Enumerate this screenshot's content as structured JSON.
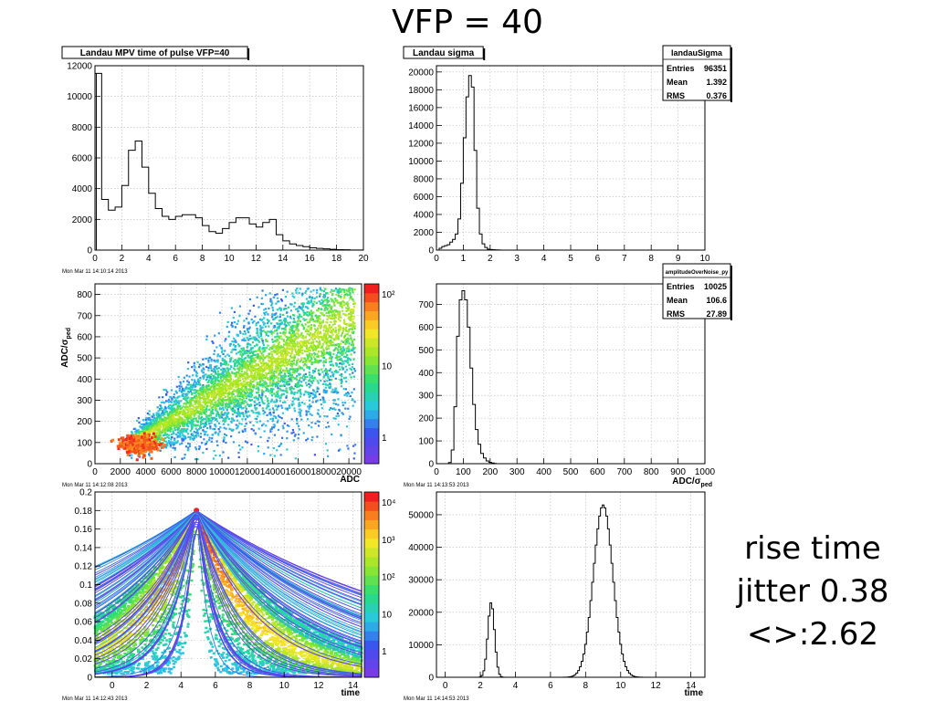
{
  "slide": {
    "title": "VFP = 40",
    "note_lines": [
      "rise time",
      "jitter 0.38",
      "<>:2.62"
    ]
  },
  "chart_data": [
    {
      "id": "mpv",
      "type": "histogram",
      "title": "Landau MPV time of pulse VFP=40",
      "timestamp": "Mon Mar 11 14:10:14 2013",
      "xlim": [
        0,
        20
      ],
      "ylim": [
        0,
        12000
      ],
      "xticks": [
        0,
        2,
        4,
        6,
        8,
        10,
        12,
        14,
        16,
        18,
        20
      ],
      "yticks": [
        0,
        2000,
        4000,
        6000,
        8000,
        10000,
        12000
      ],
      "x": [
        0.25,
        0.75,
        1.25,
        1.75,
        2.25,
        2.75,
        3.25,
        3.75,
        4.25,
        4.75,
        5.25,
        5.75,
        6.25,
        6.75,
        7.25,
        7.75,
        8.25,
        8.75,
        9.25,
        9.75,
        10.25,
        10.75,
        11.25,
        11.75,
        12.25,
        12.75,
        13.25,
        13.75,
        14.25,
        14.75,
        15.25,
        15.75,
        16.25,
        16.75,
        17.25,
        17.75,
        18.25,
        18.75,
        19.25,
        19.75
      ],
      "y": [
        11500,
        3300,
        2600,
        2800,
        4200,
        6500,
        7100,
        5400,
        3700,
        2700,
        2200,
        2000,
        2200,
        2300,
        2300,
        2100,
        1600,
        1200,
        1100,
        1400,
        1800,
        2100,
        2100,
        1700,
        1500,
        1800,
        2000,
        1000,
        600,
        400,
        300,
        220,
        150,
        110,
        80,
        50,
        30,
        20,
        10,
        5
      ],
      "extra_bins": [
        {
          "x": 0.1,
          "y": 5400
        }
      ]
    },
    {
      "id": "sigma",
      "type": "histogram",
      "title": "Landau sigma",
      "xlim": [
        0,
        10
      ],
      "ylim": [
        0,
        20700
      ],
      "xticks": [
        0,
        1,
        2,
        3,
        4,
        5,
        6,
        7,
        8,
        9,
        10
      ],
      "yticks": [
        0,
        2000,
        4000,
        6000,
        8000,
        10000,
        12000,
        14000,
        16000,
        18000,
        20000
      ],
      "x": [
        0.05,
        0.15,
        0.25,
        0.35,
        0.45,
        0.55,
        0.65,
        0.75,
        0.85,
        0.95,
        1.05,
        1.15,
        1.25,
        1.35,
        1.45,
        1.55,
        1.65,
        1.75,
        1.85,
        1.95,
        2.05,
        2.15,
        2.25,
        2.35,
        2.45,
        2.55
      ],
      "y": [
        0,
        200,
        400,
        500,
        600,
        900,
        1200,
        1800,
        3500,
        7500,
        12600,
        17200,
        19600,
        18300,
        11200,
        4700,
        1800,
        700,
        300,
        100,
        60,
        40,
        20,
        10,
        5,
        0
      ],
      "stats": {
        "name": "landauSigma",
        "rows": [
          [
            "Entries",
            "96351"
          ],
          [
            "Mean",
            "1.392"
          ],
          [
            "RMS",
            "0.376"
          ]
        ]
      }
    },
    {
      "id": "adc2d",
      "type": "heatmap",
      "timestamp": "Mon Mar 11 14:12:08 2013",
      "xlabel": "ADC",
      "ylabel": "ADC/σ_ped",
      "xlim": [
        0,
        21000
      ],
      "ylim": [
        0,
        850
      ],
      "xticks": [
        0,
        2000,
        4000,
        6000,
        8000,
        10000,
        12000,
        14000,
        16000,
        18000,
        20000
      ],
      "yticks": [
        0,
        100,
        200,
        300,
        400,
        500,
        600,
        700,
        800
      ],
      "zscale": "log",
      "zticks": [
        "1",
        "10",
        "10²"
      ],
      "band": {
        "start": [
          2500,
          80
        ],
        "hot_spot": [
          3500,
          90
        ],
        "slope_per_adc": 0.038,
        "spread_low": 0.35,
        "spread_high": 0.45,
        "end_x": 20500
      }
    },
    {
      "id": "adcnoise",
      "type": "histogram",
      "xlabel": "ADC/σ_ped",
      "timestamp": "Mon Mar 11 14:13:53 2013",
      "xlim": [
        0,
        1000
      ],
      "ylim": [
        0,
        790
      ],
      "xticks": [
        0,
        100,
        200,
        300,
        400,
        500,
        600,
        700,
        800,
        900,
        1000
      ],
      "yticks": [
        0,
        100,
        200,
        300,
        400,
        500,
        600,
        700
      ],
      "x": [
        50,
        60,
        70,
        80,
        90,
        100,
        110,
        120,
        130,
        140,
        150,
        160,
        170,
        180,
        190,
        200,
        210,
        220
      ],
      "y": [
        5,
        60,
        250,
        560,
        720,
        760,
        720,
        600,
        420,
        260,
        150,
        85,
        45,
        25,
        12,
        6,
        3,
        1
      ],
      "stats": {
        "name": "amplitudeOverNoise_py",
        "rows": [
          [
            "Entries",
            "10025"
          ],
          [
            "Mean",
            "106.6"
          ],
          [
            "RMS",
            "27.89"
          ]
        ]
      }
    },
    {
      "id": "time2d",
      "type": "heatmap",
      "xlabel": "time",
      "timestamp": "Mon Mar 11 14:12:43 2013",
      "xlim": [
        -1,
        14.5
      ],
      "ylim": [
        0,
        0.2
      ],
      "xticks": [
        0,
        2,
        4,
        6,
        8,
        10,
        12,
        14
      ],
      "yticks": [
        0,
        0.02,
        0.04,
        0.06,
        0.08,
        0.1,
        0.12,
        0.14,
        0.16,
        0.18,
        0.2
      ],
      "zscale": "log",
      "zticks": [
        "1",
        "10",
        "10²",
        "10³",
        "10⁴"
      ],
      "pulse_peak": [
        4.9,
        0.18
      ]
    },
    {
      "id": "rise",
      "type": "histogram",
      "xlabel": "time",
      "timestamp": "Mon Mar 11 14:14:53 2013",
      "xlim": [
        -0.5,
        14.8
      ],
      "ylim": [
        0,
        57000
      ],
      "xticks": [
        0,
        2,
        4,
        6,
        8,
        10,
        12,
        14
      ],
      "yticks": [
        0,
        10000,
        20000,
        30000,
        40000,
        50000
      ],
      "peaks": [
        {
          "mean": 2.62,
          "sigma": 0.19,
          "height": 23000
        },
        {
          "mean": 9.0,
          "sigma": 0.55,
          "height": 53000
        }
      ],
      "x_range": [
        0.5,
        12.5
      ],
      "bin_width": 0.1
    }
  ]
}
